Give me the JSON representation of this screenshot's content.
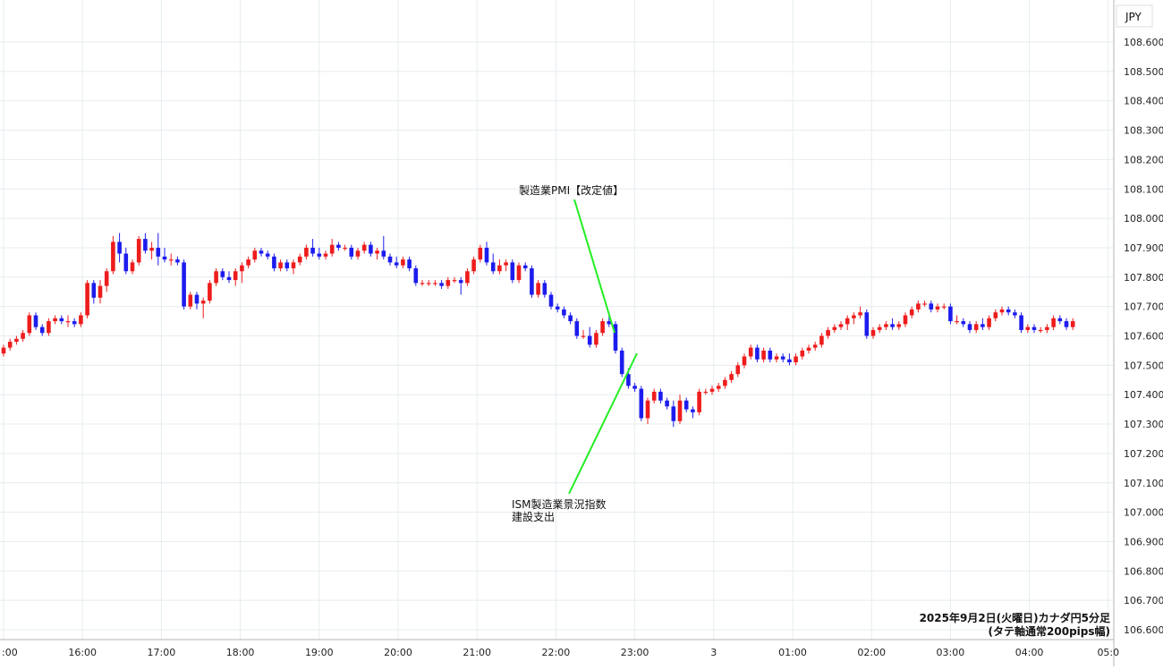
{
  "chart_data": {
    "type": "candlestick",
    "currency_label": "JPY",
    "ylim": [
      106.55,
      108.72
    ],
    "y_ticks": [
      106.6,
      106.7,
      106.8,
      106.9,
      107.0,
      107.1,
      107.2,
      107.3,
      107.4,
      107.5,
      107.6,
      107.7,
      107.8,
      107.9,
      108.0,
      108.1,
      108.2,
      108.3,
      108.4,
      108.5,
      108.6
    ],
    "x_ticks": [
      ":00",
      "16:00",
      "17:00",
      "18:00",
      "19:00",
      "20:00",
      "21:00",
      "22:00",
      "23:00",
      "3",
      "01:00",
      "02:00",
      "03:00",
      "04:00",
      "05:0"
    ],
    "grid": true,
    "colors": {
      "up": "#ee1c1c",
      "down": "#1c1cee",
      "grid": "#e6ecef",
      "annotation_line": "#22ee22"
    },
    "annotations": [
      {
        "text": "製造業PMI【改定値】"
      },
      {
        "lines": [
          "ISM製造業景況指数",
          "建設支出"
        ]
      }
    ],
    "caption": [
      "2025年9月2日(火曜日)カナダ円5分足",
      "(タテ軸通常200pips幅)"
    ],
    "candles": [
      [
        107.54,
        107.57,
        107.53,
        107.56
      ],
      [
        107.56,
        107.59,
        107.55,
        107.58
      ],
      [
        107.58,
        107.6,
        107.57,
        107.59
      ],
      [
        107.59,
        107.62,
        107.58,
        107.61
      ],
      [
        107.61,
        107.68,
        107.6,
        107.67
      ],
      [
        107.67,
        107.68,
        107.62,
        107.63
      ],
      [
        107.63,
        107.64,
        107.6,
        107.61
      ],
      [
        107.61,
        107.66,
        107.6,
        107.65
      ],
      [
        107.65,
        107.67,
        107.64,
        107.66
      ],
      [
        107.66,
        107.67,
        107.64,
        107.65
      ],
      [
        107.65,
        107.67,
        107.63,
        107.65
      ],
      [
        107.65,
        107.66,
        107.63,
        107.64
      ],
      [
        107.64,
        107.68,
        107.63,
        107.67
      ],
      [
        107.67,
        107.79,
        107.66,
        107.78
      ],
      [
        107.78,
        107.79,
        107.71,
        107.73
      ],
      [
        107.73,
        107.79,
        107.71,
        107.77
      ],
      [
        107.77,
        107.83,
        107.75,
        107.82
      ],
      [
        107.82,
        107.94,
        107.81,
        107.92
      ],
      [
        107.92,
        107.95,
        107.85,
        107.88
      ],
      [
        107.88,
        107.9,
        107.81,
        107.82
      ],
      [
        107.82,
        107.86,
        107.81,
        107.85
      ],
      [
        107.85,
        107.94,
        107.84,
        107.93
      ],
      [
        107.93,
        107.95,
        107.88,
        107.89
      ],
      [
        107.89,
        107.92,
        107.86,
        107.9
      ],
      [
        107.9,
        107.95,
        107.84,
        107.87
      ],
      [
        107.87,
        107.9,
        107.85,
        107.86
      ],
      [
        107.86,
        107.88,
        107.84,
        107.86
      ],
      [
        107.86,
        107.87,
        107.84,
        107.85
      ],
      [
        107.85,
        107.86,
        107.69,
        107.7
      ],
      [
        107.7,
        107.75,
        107.69,
        107.74
      ],
      [
        107.74,
        107.75,
        107.69,
        107.71
      ],
      [
        107.71,
        107.73,
        107.66,
        107.72
      ],
      [
        107.72,
        107.79,
        107.71,
        107.78
      ],
      [
        107.78,
        107.83,
        107.77,
        107.82
      ],
      [
        107.82,
        107.83,
        107.79,
        107.8
      ],
      [
        107.8,
        107.82,
        107.78,
        107.79
      ],
      [
        107.79,
        107.83,
        107.77,
        107.82
      ],
      [
        107.82,
        107.85,
        107.78,
        107.84
      ],
      [
        107.84,
        107.87,
        107.83,
        107.86
      ],
      [
        107.86,
        107.9,
        107.85,
        107.89
      ],
      [
        107.89,
        107.9,
        107.87,
        107.88
      ],
      [
        107.88,
        107.89,
        107.86,
        107.87
      ],
      [
        107.87,
        107.88,
        107.82,
        107.83
      ],
      [
        107.83,
        107.86,
        107.82,
        107.85
      ],
      [
        107.85,
        107.86,
        107.82,
        107.83
      ],
      [
        107.83,
        107.86,
        107.81,
        107.85
      ],
      [
        107.85,
        107.88,
        107.84,
        107.87
      ],
      [
        107.87,
        107.91,
        107.86,
        107.9
      ],
      [
        107.9,
        107.93,
        107.87,
        107.88
      ],
      [
        107.88,
        107.9,
        107.86,
        107.87
      ],
      [
        107.87,
        107.89,
        107.86,
        107.88
      ],
      [
        107.88,
        107.93,
        107.87,
        107.91
      ],
      [
        107.91,
        107.92,
        107.89,
        107.9
      ],
      [
        107.9,
        107.91,
        107.89,
        107.9
      ],
      [
        107.9,
        107.91,
        107.86,
        107.87
      ],
      [
        107.87,
        107.9,
        107.86,
        107.89
      ],
      [
        107.89,
        107.92,
        107.88,
        107.91
      ],
      [
        107.91,
        107.92,
        107.87,
        107.88
      ],
      [
        107.88,
        107.9,
        107.86,
        107.89
      ],
      [
        107.89,
        107.94,
        107.86,
        107.87
      ],
      [
        107.87,
        107.88,
        107.84,
        107.85
      ],
      [
        107.85,
        107.87,
        107.83,
        107.84
      ],
      [
        107.84,
        107.87,
        107.83,
        107.86
      ],
      [
        107.86,
        107.87,
        107.82,
        107.83
      ],
      [
        107.83,
        107.84,
        107.77,
        107.78
      ],
      [
        107.78,
        107.79,
        107.77,
        107.78
      ],
      [
        107.78,
        107.79,
        107.77,
        107.78
      ],
      [
        107.78,
        107.79,
        107.77,
        107.78
      ],
      [
        107.78,
        107.79,
        107.76,
        107.77
      ],
      [
        107.77,
        107.8,
        107.76,
        107.79
      ],
      [
        107.79,
        107.8,
        107.78,
        107.79
      ],
      [
        107.79,
        107.8,
        107.74,
        107.78
      ],
      [
        107.78,
        107.83,
        107.77,
        107.82
      ],
      [
        107.82,
        107.87,
        107.81,
        107.86
      ],
      [
        107.86,
        107.91,
        107.85,
        107.9
      ],
      [
        107.9,
        107.92,
        107.84,
        107.85
      ],
      [
        107.85,
        107.88,
        107.81,
        107.82
      ],
      [
        107.82,
        107.86,
        107.81,
        107.84
      ],
      [
        107.84,
        107.86,
        107.82,
        107.85
      ],
      [
        107.85,
        107.86,
        107.78,
        107.79
      ],
      [
        107.79,
        107.85,
        107.78,
        107.84
      ],
      [
        107.84,
        107.85,
        107.82,
        107.83
      ],
      [
        107.83,
        107.84,
        107.73,
        107.74
      ],
      [
        107.74,
        107.79,
        107.73,
        107.78
      ],
      [
        107.78,
        107.79,
        107.73,
        107.74
      ],
      [
        107.74,
        107.75,
        107.69,
        107.7
      ],
      [
        107.7,
        107.71,
        107.68,
        107.69
      ],
      [
        107.69,
        107.7,
        107.66,
        107.67
      ],
      [
        107.67,
        107.68,
        107.64,
        107.65
      ],
      [
        107.65,
        107.66,
        107.59,
        107.6
      ],
      [
        107.6,
        107.62,
        107.59,
        107.6
      ],
      [
        107.6,
        107.63,
        107.56,
        107.57
      ],
      [
        107.57,
        107.62,
        107.56,
        107.61
      ],
      [
        107.61,
        107.66,
        107.6,
        107.65
      ],
      [
        107.65,
        107.68,
        107.63,
        107.64
      ],
      [
        107.64,
        107.65,
        107.54,
        107.55
      ],
      [
        107.55,
        107.56,
        107.46,
        107.47
      ],
      [
        107.47,
        107.49,
        107.42,
        107.43
      ],
      [
        107.43,
        107.44,
        107.41,
        107.42
      ],
      [
        107.42,
        107.43,
        107.31,
        107.32
      ],
      [
        107.32,
        107.39,
        107.3,
        107.38
      ],
      [
        107.38,
        107.42,
        107.37,
        107.41
      ],
      [
        107.41,
        107.42,
        107.37,
        107.38
      ],
      [
        107.38,
        107.39,
        107.35,
        107.36
      ],
      [
        107.36,
        107.38,
        107.29,
        107.31
      ],
      [
        107.31,
        107.4,
        107.3,
        107.38
      ],
      [
        107.38,
        107.39,
        107.34,
        107.35
      ],
      [
        107.35,
        107.36,
        107.32,
        107.34
      ],
      [
        107.34,
        107.42,
        107.33,
        107.41
      ],
      [
        107.41,
        107.42,
        107.4,
        107.41
      ],
      [
        107.41,
        107.43,
        107.4,
        107.42
      ],
      [
        107.42,
        107.44,
        107.41,
        107.43
      ],
      [
        107.43,
        107.46,
        107.42,
        107.45
      ],
      [
        107.45,
        107.48,
        107.44,
        107.47
      ],
      [
        107.47,
        107.51,
        107.46,
        107.5
      ],
      [
        107.5,
        107.54,
        107.49,
        107.53
      ],
      [
        107.53,
        107.57,
        107.52,
        107.56
      ],
      [
        107.56,
        107.57,
        107.51,
        107.52
      ],
      [
        107.52,
        107.56,
        107.51,
        107.55
      ],
      [
        107.55,
        107.56,
        107.51,
        107.52
      ],
      [
        107.52,
        107.54,
        107.51,
        107.53
      ],
      [
        107.53,
        107.54,
        107.51,
        107.52
      ],
      [
        107.52,
        107.54,
        107.5,
        107.51
      ],
      [
        107.51,
        107.54,
        107.5,
        107.53
      ],
      [
        107.53,
        107.56,
        107.52,
        107.55
      ],
      [
        107.55,
        107.57,
        107.54,
        107.56
      ],
      [
        107.56,
        107.58,
        107.55,
        107.57
      ],
      [
        107.57,
        107.61,
        107.56,
        107.6
      ],
      [
        107.6,
        107.63,
        107.59,
        107.62
      ],
      [
        107.62,
        107.64,
        107.61,
        107.63
      ],
      [
        107.63,
        107.65,
        107.62,
        107.64
      ],
      [
        107.64,
        107.67,
        107.62,
        107.66
      ],
      [
        107.66,
        107.68,
        107.64,
        107.67
      ],
      [
        107.67,
        107.7,
        107.66,
        107.68
      ],
      [
        107.68,
        107.69,
        107.59,
        107.6
      ],
      [
        107.6,
        107.63,
        107.59,
        107.62
      ],
      [
        107.62,
        107.64,
        107.61,
        107.63
      ],
      [
        107.63,
        107.65,
        107.62,
        107.64
      ],
      [
        107.64,
        107.66,
        107.62,
        107.63
      ],
      [
        107.63,
        107.65,
        107.62,
        107.64
      ],
      [
        107.64,
        107.68,
        107.63,
        107.67
      ],
      [
        107.67,
        107.7,
        107.66,
        107.69
      ],
      [
        107.69,
        107.72,
        107.68,
        107.71
      ],
      [
        107.71,
        107.72,
        107.7,
        107.71
      ],
      [
        107.71,
        107.72,
        107.68,
        107.69
      ],
      [
        107.69,
        107.71,
        107.68,
        107.7
      ],
      [
        107.7,
        107.71,
        107.69,
        107.7
      ],
      [
        107.7,
        107.71,
        107.64,
        107.65
      ],
      [
        107.65,
        107.67,
        107.64,
        107.65
      ],
      [
        107.65,
        107.66,
        107.63,
        107.64
      ],
      [
        107.64,
        107.65,
        107.61,
        107.62
      ],
      [
        107.62,
        107.65,
        107.61,
        107.64
      ],
      [
        107.64,
        107.66,
        107.62,
        107.63
      ],
      [
        107.63,
        107.67,
        107.62,
        107.66
      ],
      [
        107.66,
        107.69,
        107.65,
        107.68
      ],
      [
        107.68,
        107.7,
        107.67,
        107.69
      ],
      [
        107.69,
        107.7,
        107.67,
        107.68
      ],
      [
        107.68,
        107.69,
        107.66,
        107.67
      ],
      [
        107.67,
        107.68,
        107.61,
        107.62
      ],
      [
        107.62,
        107.64,
        107.61,
        107.63
      ],
      [
        107.63,
        107.64,
        107.61,
        107.62
      ],
      [
        107.62,
        107.63,
        107.61,
        107.62
      ],
      [
        107.62,
        107.64,
        107.61,
        107.63
      ],
      [
        107.63,
        107.67,
        107.62,
        107.66
      ],
      [
        107.66,
        107.67,
        107.64,
        107.65
      ],
      [
        107.65,
        107.66,
        107.62,
        107.63
      ],
      [
        107.63,
        107.66,
        107.62,
        107.65
      ]
    ]
  }
}
